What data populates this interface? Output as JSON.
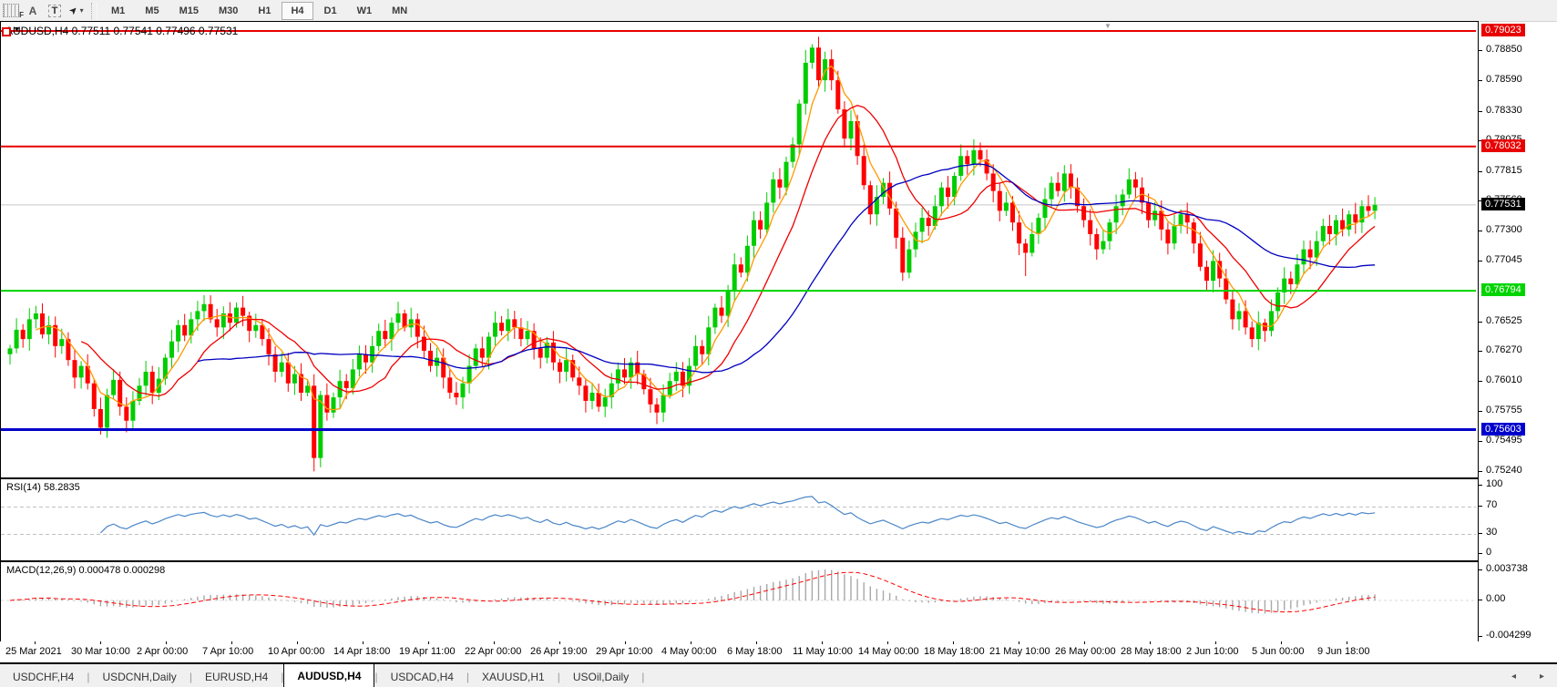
{
  "toolbar": {
    "icons": [
      {
        "name": "indicators-grid-icon",
        "label": "F"
      },
      {
        "name": "text-label-icon",
        "label": "A"
      },
      {
        "name": "text-box-icon",
        "label": "T"
      },
      {
        "name": "arrow-objects-icon",
        "label": "➤"
      }
    ],
    "timeframes": [
      "M1",
      "M5",
      "M15",
      "M30",
      "H1",
      "H4",
      "D1",
      "W1",
      "MN"
    ],
    "active_timeframe": "H4"
  },
  "chart": {
    "title": "AUDUSD,H4 0.77511 0.77541 0.77496 0.77531",
    "rsi_label": "RSI(14) 58.2835",
    "macd_label": "MACD(12,26,9) 0.000478 0.000298"
  },
  "tabs": {
    "items": [
      "USDCHF,H4",
      "USDCNH,Daily",
      "EURUSD,H4",
      "AUDUSD,H4",
      "USDCAD,H4",
      "XAUUSD,H1",
      "USOil,Daily"
    ],
    "active": "AUDUSD,H4",
    "scroll_left": "◂",
    "scroll_right": "▸"
  },
  "chart_data": {
    "type": "candlestick",
    "symbol": "AUDUSD",
    "timeframe": "H4",
    "title": "AUDUSD,H4 0.77511 0.77541 0.77496 0.77531",
    "open": 0.77511,
    "high": 0.77541,
    "low": 0.77496,
    "close": 0.77531,
    "ylim": [
      0.75201,
      0.79093
    ],
    "up_color": "#00cd00",
    "down_color": "#ff0000",
    "price_ticks": [
      0.7885,
      0.7859,
      0.7833,
      0.78075,
      0.77815,
      0.7756,
      0.773,
      0.77045,
      0.76525,
      0.7627,
      0.7601,
      0.75755,
      0.75495,
      0.7524
    ],
    "levels": [
      {
        "price": 0.79023,
        "label": "0.79023",
        "color": "#e80000",
        "width": 2,
        "name": "resistance-line-1"
      },
      {
        "price": 0.78032,
        "label": "0.78032",
        "color": "#e80000",
        "width": 2,
        "name": "resistance-line-2"
      },
      {
        "price": 0.76794,
        "label": "0.76794",
        "color": "#00d400",
        "width": 2,
        "name": "support-line-1"
      },
      {
        "price": 0.75603,
        "label": "0.75603",
        "color": "#0000cc",
        "width": 3,
        "name": "support-line-2"
      }
    ],
    "current_price": {
      "price": 0.77531,
      "label": "0.77531",
      "badge_color": "#000000",
      "line_color": "#c8c8c8"
    },
    "moving_averages": [
      {
        "name": "ma-fast",
        "window": 5,
        "color": "#ff9900"
      },
      {
        "name": "ma-medium",
        "window": 12,
        "color": "#f00000"
      },
      {
        "name": "ma-slow",
        "window": 30,
        "color": "#0000c0"
      }
    ],
    "closes": [
      0.763,
      0.7646,
      0.7638,
      0.7655,
      0.766,
      0.7642,
      0.765,
      0.7632,
      0.7638,
      0.762,
      0.7605,
      0.7615,
      0.76,
      0.7578,
      0.7562,
      0.759,
      0.7603,
      0.758,
      0.7568,
      0.7585,
      0.7598,
      0.761,
      0.7592,
      0.7604,
      0.7622,
      0.7636,
      0.765,
      0.7641,
      0.7655,
      0.7662,
      0.7668,
      0.7655,
      0.7648,
      0.766,
      0.7652,
      0.7665,
      0.7658,
      0.7645,
      0.765,
      0.7638,
      0.7625,
      0.761,
      0.7618,
      0.76,
      0.7608,
      0.7592,
      0.7598,
      0.7536,
      0.759,
      0.7575,
      0.7588,
      0.7602,
      0.7596,
      0.7612,
      0.7625,
      0.7618,
      0.7632,
      0.7645,
      0.7638,
      0.7652,
      0.766,
      0.7648,
      0.7655,
      0.764,
      0.7628,
      0.7615,
      0.7622,
      0.7605,
      0.7592,
      0.7588,
      0.76,
      0.7615,
      0.763,
      0.7622,
      0.764,
      0.7652,
      0.7645,
      0.7655,
      0.7648,
      0.7638,
      0.7645,
      0.763,
      0.7622,
      0.7635,
      0.7618,
      0.761,
      0.762,
      0.7605,
      0.7598,
      0.7585,
      0.7592,
      0.758,
      0.7588,
      0.76,
      0.7612,
      0.7605,
      0.7618,
      0.7608,
      0.7595,
      0.7582,
      0.7575,
      0.759,
      0.7602,
      0.761,
      0.7598,
      0.7615,
      0.7632,
      0.7625,
      0.7648,
      0.7665,
      0.7658,
      0.768,
      0.7702,
      0.7695,
      0.7718,
      0.774,
      0.7732,
      0.7755,
      0.7775,
      0.7768,
      0.779,
      0.7805,
      0.784,
      0.7875,
      0.7888,
      0.786,
      0.7878,
      0.786,
      0.7835,
      0.781,
      0.7825,
      0.7795,
      0.777,
      0.7745,
      0.776,
      0.7772,
      0.775,
      0.7725,
      0.7695,
      0.7715,
      0.773,
      0.7742,
      0.7735,
      0.7752,
      0.7768,
      0.776,
      0.7778,
      0.7795,
      0.7788,
      0.78,
      0.7792,
      0.778,
      0.7765,
      0.7748,
      0.7755,
      0.7738,
      0.772,
      0.7712,
      0.7728,
      0.7742,
      0.7758,
      0.7772,
      0.7765,
      0.778,
      0.7768,
      0.7752,
      0.774,
      0.7728,
      0.7715,
      0.7722,
      0.7738,
      0.7752,
      0.7762,
      0.7775,
      0.7768,
      0.7755,
      0.774,
      0.7748,
      0.7732,
      0.772,
      0.7735,
      0.7745,
      0.7738,
      0.772,
      0.77,
      0.7688,
      0.7705,
      0.769,
      0.7672,
      0.7655,
      0.7662,
      0.7648,
      0.7638,
      0.7652,
      0.7645,
      0.7662,
      0.7678,
      0.769,
      0.7685,
      0.7702,
      0.7715,
      0.7708,
      0.7722,
      0.7735,
      0.7728,
      0.774,
      0.7732,
      0.7745,
      0.7738,
      0.7752,
      0.7748,
      0.77531
    ],
    "wick_overrides": {
      "14": {
        "low": 0.7556
      },
      "45": {
        "low": 0.7585
      },
      "47": {
        "low": 0.75245
      },
      "48": {
        "low": 0.7528
      },
      "121": {
        "high": 0.7811
      },
      "123": {
        "high": 0.7886
      },
      "124": {
        "high": 0.7891
      },
      "126": {
        "high": 0.78845
      },
      "138": {
        "low": 0.7688
      },
      "157": {
        "low": 0.7692
      },
      "185": {
        "low": 0.768
      },
      "192": {
        "low": 0.7631
      }
    },
    "rsi": {
      "period": 14,
      "value": 58.2835,
      "color": "#4a86c8",
      "levels": [
        100,
        70,
        30,
        0
      ],
      "level_line_color": "#c0c0c0"
    },
    "macd": {
      "fast": 12,
      "slow": 26,
      "signal": 9,
      "value": 0.000478,
      "signal_value": 0.000298,
      "hist_color": "#a8a8a8",
      "signal_color": "#ff0000",
      "axis_labels": [
        "0.003738",
        "0.00",
        "-0.004299"
      ]
    },
    "time_axis": [
      "25 Mar 2021",
      "30 Mar 10:00",
      "2 Apr 00:00",
      "7 Apr 10:00",
      "10 Apr 00:00",
      "14 Apr 18:00",
      "19 Apr 11:00",
      "22 Apr 00:00",
      "26 Apr 19:00",
      "29 Apr 10:00",
      "4 May 00:00",
      "6 May 18:00",
      "11 May 10:00",
      "14 May 00:00",
      "18 May 18:00",
      "21 May 10:00",
      "26 May 00:00",
      "28 May 18:00",
      "2 Jun 10:00",
      "5 Jun 00:00",
      "9 Jun 18:00"
    ]
  }
}
